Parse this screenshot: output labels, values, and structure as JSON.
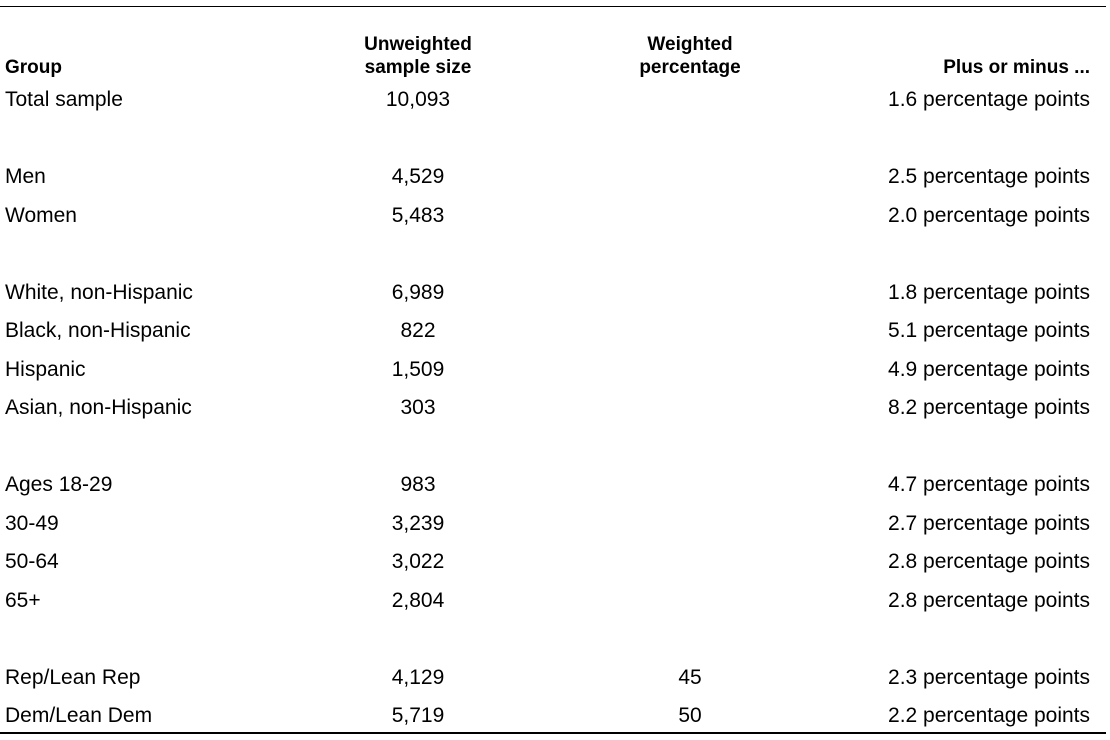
{
  "table": {
    "header": {
      "group": "Group",
      "n": "Unweighted sample size",
      "weighted": "Weighted percentage",
      "moe": "Plus or minus ..."
    },
    "sections": [
      [
        {
          "group": "Total sample",
          "n": "10,093",
          "moe": "1.6 percentage points"
        }
      ],
      [
        {
          "group": "Men",
          "n": "4,529",
          "moe": "2.5 percentage points"
        },
        {
          "group": "Women",
          "n": "5,483",
          "moe": "2.0 percentage points"
        }
      ],
      [
        {
          "group": "White, non-Hispanic",
          "n": "6,989",
          "moe": "1.8 percentage points"
        },
        {
          "group": "Black, non-Hispanic",
          "n": "822",
          "moe": "5.1 percentage points"
        },
        {
          "group": "Hispanic",
          "n": "1,509",
          "moe": "4.9 percentage points"
        },
        {
          "group": "Asian, non-Hispanic",
          "n": "303",
          "moe": "8.2 percentage points"
        }
      ],
      [
        {
          "group": "Ages 18-29",
          "n": "983",
          "moe": "4.7 percentage points"
        },
        {
          "group": "30-49",
          "n": "3,239",
          "moe": "2.7 percentage points"
        },
        {
          "group": "50-64",
          "n": "3,022",
          "moe": "2.8 percentage points"
        },
        {
          "group": "65+",
          "n": "2,804",
          "moe": "2.8 percentage points"
        }
      ],
      [
        {
          "group": "Rep/Lean Rep",
          "n": "4,129",
          "weighted": "45",
          "moe": "2.3 percentage points"
        },
        {
          "group": "Dem/Lean Dem",
          "n": "5,719",
          "weighted": "50",
          "moe": "2.2 percentage points"
        }
      ]
    ]
  }
}
